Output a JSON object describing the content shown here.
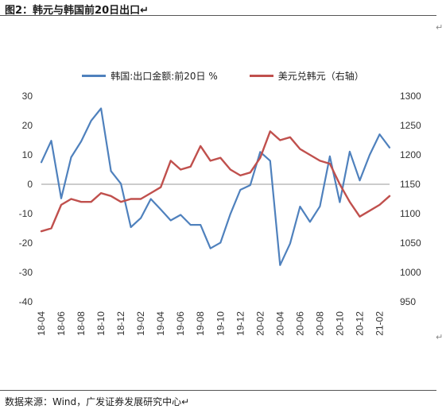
{
  "header": {
    "title": "图2：韩元与韩国前20日出口↵"
  },
  "footer": {
    "source": "数据来源：Wind，广发证券发展研究中心↵"
  },
  "marks": {
    "return_symbol": "↵"
  },
  "colors": {
    "left_series": "#4f81bd",
    "right_series": "#c0504d"
  },
  "chart_data": {
    "type": "line",
    "left_axis": {
      "ticks": [
        "30",
        "20",
        "10",
        "0",
        "-10",
        "-20",
        "-30",
        "-40"
      ],
      "ylim": [
        -40,
        30
      ]
    },
    "right_axis": {
      "ticks": [
        "1300",
        "1250",
        "1200",
        "1150",
        "1100",
        "1050",
        "1000",
        "950"
      ],
      "ylim": [
        950,
        1300
      ]
    },
    "x_ticks": [
      "18-04",
      "18-06",
      "18-08",
      "18-10",
      "18-12",
      "19-02",
      "19-04",
      "19-06",
      "19-08",
      "19-10",
      "19-12",
      "20-02",
      "20-04",
      "20-06",
      "20-08",
      "20-10",
      "20-12",
      "21-02"
    ],
    "series": [
      {
        "name": "韩国:出口金额:前20日 %",
        "axis": "left",
        "x": [
          "18-04",
          "18-05",
          "18-06",
          "18-07",
          "18-08",
          "18-09",
          "18-10",
          "18-11",
          "18-12",
          "19-01",
          "19-02",
          "19-03",
          "19-04",
          "19-05",
          "19-06",
          "19-07",
          "19-08",
          "19-09",
          "19-10",
          "19-11",
          "19-12",
          "20-01",
          "20-02",
          "20-03",
          "20-04",
          "20-05",
          "20-06",
          "20-07",
          "20-08",
          "20-09",
          "20-10",
          "20-11",
          "20-12",
          "21-01",
          "21-02",
          "21-03"
        ],
        "values": [
          7.5,
          14.8,
          -4.8,
          9.2,
          14.6,
          21.6,
          25.8,
          4.5,
          0.2,
          -14.6,
          -11.5,
          -5.0,
          -8.6,
          -12.3,
          -10.4,
          -13.8,
          -13.8,
          -21.8,
          -19.9,
          -10.1,
          -1.9,
          -0.3,
          11.0,
          8.0,
          -27.5,
          -20.2,
          -7.6,
          -12.8,
          -7.5,
          9.5,
          -6.1,
          11.1,
          1.3,
          10.0,
          17.0,
          12.5
        ]
      },
      {
        "name": "美元兑韩元（右轴）",
        "axis": "right",
        "x": [
          "18-04",
          "18-05",
          "18-06",
          "18-07",
          "18-08",
          "18-09",
          "18-10",
          "18-11",
          "18-12",
          "19-01",
          "19-02",
          "19-03",
          "19-04",
          "19-05",
          "19-06",
          "19-07",
          "19-08",
          "19-09",
          "19-10",
          "19-11",
          "19-12",
          "20-01",
          "20-02",
          "20-03",
          "20-04",
          "20-05",
          "20-06",
          "20-07",
          "20-08",
          "20-09",
          "20-10",
          "20-11",
          "20-12",
          "21-01",
          "21-02",
          "21-03"
        ],
        "values": [
          1070,
          1075,
          1115,
          1125,
          1120,
          1120,
          1135,
          1130,
          1120,
          1125,
          1125,
          1135,
          1145,
          1190,
          1175,
          1180,
          1215,
          1190,
          1195,
          1175,
          1165,
          1170,
          1195,
          1240,
          1225,
          1230,
          1210,
          1200,
          1190,
          1185,
          1150,
          1120,
          1095,
          1105,
          1115,
          1130
        ]
      }
    ]
  }
}
